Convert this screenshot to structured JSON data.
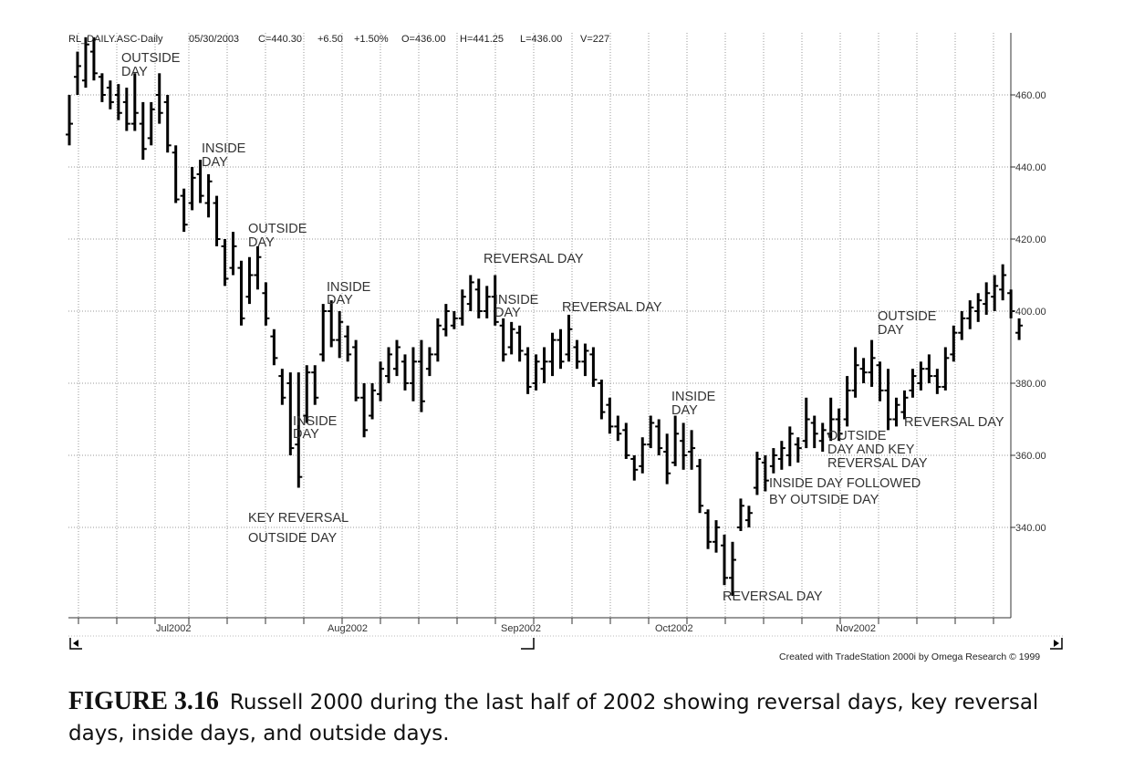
{
  "header": {
    "symbol": "RL_DAILY.ASC-Daily",
    "date": "05/30/2003",
    "close": "C=440.30",
    "change": "+6.50",
    "pct": "+1.50%",
    "open": "O=436.00",
    "high": "H=441.25",
    "low": "L=436.00",
    "volume": "V=227"
  },
  "credit": "Created with TradeStation 2000i by Omega Research © 1999",
  "caption": {
    "label": "FIGURE 3.16",
    "text": "Russell 2000 during the last half of 2002 showing reversal days, key reversal days, inside days, and outside days."
  },
  "chart_data": {
    "type": "ohlc",
    "ylim": [
      320,
      478
    ],
    "y_ticks": [
      "460.00",
      "440.00",
      "420.00",
      "400.00",
      "380.00",
      "360.00",
      "340.00"
    ],
    "y_tick_values": [
      460,
      440,
      420,
      400,
      380,
      360,
      340
    ],
    "x_ticks": [
      "Jul2002",
      "Aug2002",
      "Sep2002",
      "Oct2002",
      "Nov2002"
    ],
    "bars": [
      {
        "h": 460,
        "l": 446,
        "o": 449,
        "c": 452
      },
      {
        "h": 472,
        "l": 460,
        "o": 465,
        "c": 468
      },
      {
        "h": 476,
        "l": 462,
        "o": 464,
        "c": 474
      },
      {
        "h": 476,
        "l": 464,
        "o": 472,
        "c": 466
      },
      {
        "h": 466,
        "l": 458,
        "o": 465,
        "c": 460
      },
      {
        "h": 464,
        "l": 456,
        "o": 462,
        "c": 458
      },
      {
        "h": 463,
        "l": 453,
        "o": 460,
        "c": 455
      },
      {
        "h": 462,
        "l": 450,
        "o": 458,
        "c": 452
      },
      {
        "h": 466,
        "l": 450,
        "o": 452,
        "c": 455
      },
      {
        "h": 458,
        "l": 442,
        "o": 452,
        "c": 445
      },
      {
        "h": 458,
        "l": 446,
        "o": 448,
        "c": 456
      },
      {
        "h": 466,
        "l": 452,
        "o": 460,
        "c": 455
      },
      {
        "h": 460,
        "l": 444,
        "o": 458,
        "c": 446
      },
      {
        "h": 446,
        "l": 430,
        "o": 444,
        "c": 431
      },
      {
        "h": 434,
        "l": 422,
        "o": 432,
        "c": 424
      },
      {
        "h": 440,
        "l": 428,
        "o": 430,
        "c": 437
      },
      {
        "h": 442,
        "l": 430,
        "o": 438,
        "c": 432
      },
      {
        "h": 438,
        "l": 426,
        "o": 430,
        "c": 436
      },
      {
        "h": 432,
        "l": 418,
        "o": 430,
        "c": 420
      },
      {
        "h": 420,
        "l": 407,
        "o": 418,
        "c": 409
      },
      {
        "h": 422,
        "l": 410,
        "o": 412,
        "c": 418
      },
      {
        "h": 414,
        "l": 396,
        "o": 412,
        "c": 398
      },
      {
        "h": 415,
        "l": 402,
        "o": 404,
        "c": 410
      },
      {
        "h": 418,
        "l": 406,
        "o": 410,
        "c": 415
      },
      {
        "h": 408,
        "l": 396,
        "o": 405,
        "c": 398
      },
      {
        "h": 395,
        "l": 385,
        "o": 393,
        "c": 387
      },
      {
        "h": 384,
        "l": 374,
        "o": 382,
        "c": 376
      },
      {
        "h": 383,
        "l": 360,
        "o": 380,
        "c": 362
      },
      {
        "h": 383,
        "l": 351,
        "o": 363,
        "c": 354
      },
      {
        "h": 385,
        "l": 369,
        "o": 371,
        "c": 383
      },
      {
        "h": 385,
        "l": 374,
        "o": 383,
        "c": 376
      },
      {
        "h": 402,
        "l": 386,
        "o": 388,
        "c": 400
      },
      {
        "h": 403,
        "l": 390,
        "o": 400,
        "c": 392
      },
      {
        "h": 400,
        "l": 387,
        "o": 392,
        "c": 397
      },
      {
        "h": 396,
        "l": 386,
        "o": 393,
        "c": 388
      },
      {
        "h": 392,
        "l": 375,
        "o": 390,
        "c": 376
      },
      {
        "h": 380,
        "l": 365,
        "o": 376,
        "c": 367
      },
      {
        "h": 380,
        "l": 370,
        "o": 371,
        "c": 378
      },
      {
        "h": 386,
        "l": 375,
        "o": 377,
        "c": 384
      },
      {
        "h": 390,
        "l": 380,
        "o": 382,
        "c": 388
      },
      {
        "h": 392,
        "l": 382,
        "o": 384,
        "c": 390
      },
      {
        "h": 388,
        "l": 378,
        "o": 386,
        "c": 380
      },
      {
        "h": 390,
        "l": 375,
        "o": 380,
        "c": 386
      },
      {
        "h": 392,
        "l": 372,
        "o": 386,
        "c": 375
      },
      {
        "h": 390,
        "l": 382,
        "o": 384,
        "c": 388
      },
      {
        "h": 398,
        "l": 386,
        "o": 388,
        "c": 396
      },
      {
        "h": 402,
        "l": 393,
        "o": 395,
        "c": 400
      },
      {
        "h": 400,
        "l": 395,
        "o": 396,
        "c": 398
      },
      {
        "h": 406,
        "l": 396,
        "o": 398,
        "c": 404
      },
      {
        "h": 410,
        "l": 400,
        "o": 402,
        "c": 408
      },
      {
        "h": 409,
        "l": 398,
        "o": 406,
        "c": 400
      },
      {
        "h": 407,
        "l": 398,
        "o": 400,
        "c": 404
      },
      {
        "h": 410,
        "l": 396,
        "o": 404,
        "c": 397
      },
      {
        "h": 398,
        "l": 386,
        "o": 396,
        "c": 388
      },
      {
        "h": 397,
        "l": 388,
        "o": 390,
        "c": 395
      },
      {
        "h": 396,
        "l": 386,
        "o": 394,
        "c": 389
      },
      {
        "h": 390,
        "l": 377,
        "o": 388,
        "c": 379
      },
      {
        "h": 388,
        "l": 378,
        "o": 380,
        "c": 386
      },
      {
        "h": 390,
        "l": 380,
        "o": 384,
        "c": 386
      },
      {
        "h": 394,
        "l": 382,
        "o": 386,
        "c": 392
      },
      {
        "h": 395,
        "l": 384,
        "o": 392,
        "c": 386
      },
      {
        "h": 399,
        "l": 386,
        "o": 388,
        "c": 395
      },
      {
        "h": 392,
        "l": 384,
        "o": 390,
        "c": 386
      },
      {
        "h": 391,
        "l": 382,
        "o": 386,
        "c": 389
      },
      {
        "h": 390,
        "l": 379,
        "o": 388,
        "c": 381
      },
      {
        "h": 381,
        "l": 370,
        "o": 380,
        "c": 372
      },
      {
        "h": 376,
        "l": 366,
        "o": 374,
        "c": 368
      },
      {
        "h": 371,
        "l": 364,
        "o": 368,
        "c": 366
      },
      {
        "h": 369,
        "l": 359,
        "o": 367,
        "c": 360
      },
      {
        "h": 360,
        "l": 353,
        "o": 359,
        "c": 356
      },
      {
        "h": 365,
        "l": 355,
        "o": 357,
        "c": 363
      },
      {
        "h": 371,
        "l": 362,
        "o": 363,
        "c": 369
      },
      {
        "h": 370,
        "l": 360,
        "o": 368,
        "c": 362
      },
      {
        "h": 366,
        "l": 352,
        "o": 361,
        "c": 355
      },
      {
        "h": 371,
        "l": 357,
        "o": 358,
        "c": 366
      },
      {
        "h": 369,
        "l": 356,
        "o": 364,
        "c": 360
      },
      {
        "h": 367,
        "l": 356,
        "o": 361,
        "c": 362
      },
      {
        "h": 359,
        "l": 344,
        "o": 357,
        "c": 346
      },
      {
        "h": 345,
        "l": 334,
        "o": 344,
        "c": 336
      },
      {
        "h": 342,
        "l": 333,
        "o": 336,
        "c": 340
      },
      {
        "h": 338,
        "l": 324,
        "o": 335,
        "c": 326
      },
      {
        "h": 336,
        "l": 321,
        "o": 326,
        "c": 331
      },
      {
        "h": 348,
        "l": 339,
        "o": 340,
        "c": 346
      },
      {
        "h": 346,
        "l": 340,
        "o": 342,
        "c": 344
      },
      {
        "h": 361,
        "l": 349,
        "o": 351,
        "c": 359
      },
      {
        "h": 360,
        "l": 350,
        "o": 358,
        "c": 353
      },
      {
        "h": 362,
        "l": 355,
        "o": 357,
        "c": 360
      },
      {
        "h": 364,
        "l": 356,
        "o": 359,
        "c": 362
      },
      {
        "h": 368,
        "l": 357,
        "o": 360,
        "c": 366
      },
      {
        "h": 365,
        "l": 358,
        "o": 363,
        "c": 362
      },
      {
        "h": 376,
        "l": 362,
        "o": 364,
        "c": 370
      },
      {
        "h": 371,
        "l": 362,
        "o": 369,
        "c": 366
      },
      {
        "h": 369,
        "l": 361,
        "o": 364,
        "c": 367
      },
      {
        "h": 376,
        "l": 364,
        "o": 366,
        "c": 370
      },
      {
        "h": 373,
        "l": 364,
        "o": 370,
        "c": 366
      },
      {
        "h": 382,
        "l": 368,
        "o": 370,
        "c": 378
      },
      {
        "h": 390,
        "l": 376,
        "o": 378,
        "c": 385
      },
      {
        "h": 387,
        "l": 380,
        "o": 384,
        "c": 383
      },
      {
        "h": 392,
        "l": 379,
        "o": 383,
        "c": 387
      },
      {
        "h": 386,
        "l": 375,
        "o": 385,
        "c": 378
      },
      {
        "h": 384,
        "l": 367,
        "o": 378,
        "c": 370
      },
      {
        "h": 376,
        "l": 368,
        "o": 370,
        "c": 374
      },
      {
        "h": 378,
        "l": 370,
        "o": 372,
        "c": 376
      },
      {
        "h": 384,
        "l": 376,
        "o": 378,
        "c": 382
      },
      {
        "h": 386,
        "l": 378,
        "o": 380,
        "c": 384
      },
      {
        "h": 388,
        "l": 380,
        "o": 384,
        "c": 382
      },
      {
        "h": 384,
        "l": 377,
        "o": 382,
        "c": 379
      },
      {
        "h": 390,
        "l": 378,
        "o": 379,
        "c": 387
      },
      {
        "h": 396,
        "l": 386,
        "o": 388,
        "c": 394
      },
      {
        "h": 400,
        "l": 392,
        "o": 394,
        "c": 398
      },
      {
        "h": 403,
        "l": 395,
        "o": 398,
        "c": 401
      },
      {
        "h": 405,
        "l": 397,
        "o": 400,
        "c": 403
      },
      {
        "h": 408,
        "l": 399,
        "o": 402,
        "c": 405
      },
      {
        "h": 410,
        "l": 400,
        "o": 404,
        "c": 407
      },
      {
        "h": 413,
        "l": 403,
        "o": 406,
        "c": 410
      },
      {
        "h": 406,
        "l": 398,
        "o": 405,
        "c": 400
      },
      {
        "h": 398,
        "l": 392,
        "o": 394,
        "c": 396
      }
    ],
    "annotations": [
      {
        "text": [
          "OUTSIDE",
          "DAY"
        ]
      },
      {
        "text": [
          "INSIDE",
          "DAY"
        ]
      },
      {
        "text": [
          "OUTSIDE",
          "DAY"
        ]
      },
      {
        "text": [
          "INSIDE",
          "DAY"
        ]
      },
      {
        "text": [
          "INSIDE",
          "DAY"
        ]
      },
      {
        "text": [
          "KEY REVERSAL",
          "OUTSIDE DAY"
        ]
      },
      {
        "text": [
          "REVERSAL DAY"
        ]
      },
      {
        "text": [
          "INSIDE",
          "DAY"
        ]
      },
      {
        "text": [
          "REVERSAL DAY"
        ]
      },
      {
        "text": [
          "INSIDE",
          "DAY"
        ]
      },
      {
        "text": [
          "REVERSAL DAY"
        ]
      },
      {
        "text": [
          "OUTSIDE",
          "DAY"
        ]
      },
      {
        "text": [
          "OUTSIDE",
          "DAY AND KEY",
          "REVERSAL DAY"
        ]
      },
      {
        "text": [
          "INSIDE DAY FOLLOWED",
          "BY OUTSIDE DAY"
        ]
      },
      {
        "text": [
          "REVERSAL DAY"
        ]
      }
    ]
  }
}
